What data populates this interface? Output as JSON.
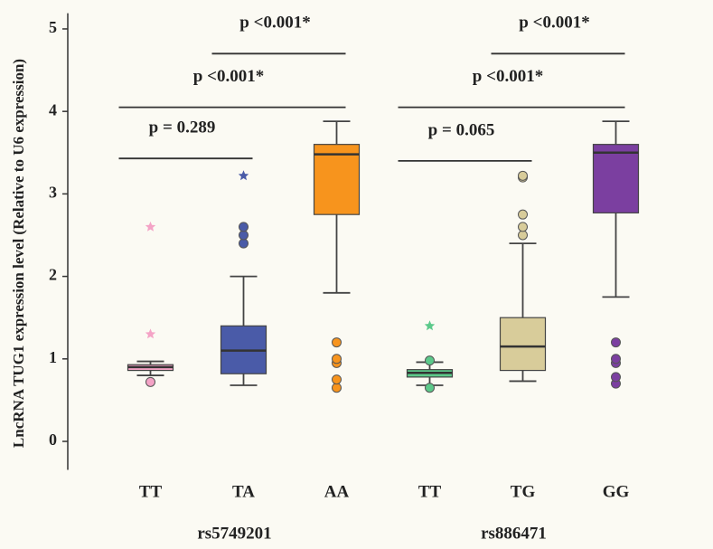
{
  "chart_data": {
    "type": "box",
    "y_label": "LncRNA TUG1 expression level (Relative to U6 expression)",
    "ylim": [
      -0.4,
      5.3
    ],
    "yticks": [
      0,
      1,
      2,
      3,
      4,
      5
    ],
    "groups": [
      {
        "name": "rs5749201",
        "boxes": [
          {
            "category": "TT",
            "color": "#f4a3c6",
            "whisker_low": 0.8,
            "q1": 0.86,
            "median": 0.9,
            "q3": 0.93,
            "whisker_high": 0.97,
            "outliers": [
              0.72
            ],
            "extremes": [
              1.3,
              2.6
            ]
          },
          {
            "category": "TA",
            "color": "#4a5ba8",
            "whisker_low": 0.68,
            "q1": 0.82,
            "median": 1.1,
            "q3": 1.4,
            "whisker_high": 2.0,
            "outliers": [
              2.4,
              2.5,
              2.6
            ],
            "extremes": [
              3.22
            ]
          },
          {
            "category": "AA",
            "color": "#f7941d",
            "whisker_low": 1.8,
            "q1": 2.75,
            "median": 3.48,
            "q3": 3.6,
            "whisker_high": 3.88,
            "outliers": [
              0.65,
              0.75,
              0.95,
              1.0,
              1.2
            ],
            "extremes": []
          }
        ],
        "comparisons": [
          {
            "label": "p = 0.289",
            "from": 0,
            "to": 1,
            "y": 3.43
          },
          {
            "label": "p <0.001*",
            "from": 0,
            "to": 2,
            "y": 4.05
          },
          {
            "label": "p <0.001*",
            "from": 1,
            "to": 2,
            "y": 4.7
          }
        ]
      },
      {
        "name": "rs886471",
        "boxes": [
          {
            "category": "TT",
            "color": "#5cc98a",
            "whisker_low": 0.68,
            "q1": 0.78,
            "median": 0.83,
            "q3": 0.87,
            "whisker_high": 0.96,
            "outliers": [
              0.65,
              0.98
            ],
            "extremes": [
              1.4
            ]
          },
          {
            "category": "TG",
            "color": "#d8cc9a",
            "whisker_low": 0.73,
            "q1": 0.86,
            "median": 1.15,
            "q3": 1.5,
            "whisker_high": 2.4,
            "outliers": [
              2.5,
              2.6,
              2.75,
              3.2,
              3.22
            ],
            "extremes": []
          },
          {
            "category": "GG",
            "color": "#7b3fa0",
            "whisker_low": 1.75,
            "q1": 2.77,
            "median": 3.5,
            "q3": 3.6,
            "whisker_high": 3.88,
            "outliers": [
              0.7,
              0.78,
              0.95,
              1.0,
              1.2
            ],
            "extremes": []
          }
        ],
        "comparisons": [
          {
            "label": "p = 0.065",
            "from": 0,
            "to": 1,
            "y": 3.4
          },
          {
            "label": "p <0.001*",
            "from": 0,
            "to": 2,
            "y": 4.05
          },
          {
            "label": "p <0.001*",
            "from": 1,
            "to": 2,
            "y": 4.7
          }
        ]
      }
    ]
  }
}
